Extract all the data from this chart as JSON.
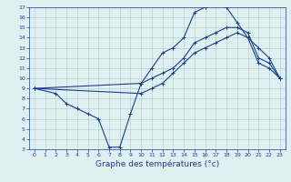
{
  "line1_x": [
    0,
    2,
    3,
    4,
    5,
    6,
    7,
    8,
    9,
    10,
    11,
    12,
    13,
    14,
    15,
    16,
    17,
    18,
    19,
    20,
    21,
    22,
    23
  ],
  "line1_y": [
    9,
    8.5,
    7.5,
    7,
    6.5,
    6,
    3.2,
    3.2,
    6.5,
    9.5,
    11,
    12.5,
    13,
    14,
    16.5,
    17,
    17.2,
    17,
    15.5,
    14,
    11.5,
    11,
    10
  ],
  "line2_x": [
    0,
    10,
    11,
    12,
    13,
    14,
    15,
    16,
    17,
    18,
    19,
    20,
    21,
    22,
    23
  ],
  "line2_y": [
    9,
    9.5,
    10,
    10.5,
    11,
    12,
    13.5,
    14,
    14.5,
    15,
    15,
    14.5,
    12,
    11.5,
    10
  ],
  "line3_x": [
    0,
    10,
    11,
    12,
    13,
    14,
    15,
    16,
    17,
    18,
    19,
    20,
    21,
    22,
    23
  ],
  "line3_y": [
    9,
    8.5,
    9,
    9.5,
    10.5,
    11.5,
    12.5,
    13,
    13.5,
    14,
    14.5,
    14,
    13,
    12,
    10
  ],
  "line_color": "#1c3d8f",
  "marker": "+",
  "markersize": 3,
  "markeredgewidth": 0.7,
  "linewidth": 0.8,
  "xlabel": "Graphe des températures (°c)",
  "xlabel_color": "#1c3d8f",
  "background_color": "#dff0f0",
  "grid_color": "#b0cccc",
  "axis_color": "#1c3d8f",
  "xlim": [
    -0.5,
    23.5
  ],
  "ylim": [
    3,
    17
  ],
  "xticks": [
    0,
    1,
    2,
    3,
    4,
    5,
    6,
    7,
    8,
    9,
    10,
    11,
    12,
    13,
    14,
    15,
    16,
    17,
    18,
    19,
    20,
    21,
    22,
    23
  ],
  "yticks": [
    3,
    4,
    5,
    6,
    7,
    8,
    9,
    10,
    11,
    12,
    13,
    14,
    15,
    16,
    17
  ],
  "tick_fontsize": 4.5,
  "xlabel_fontsize": 6.5
}
